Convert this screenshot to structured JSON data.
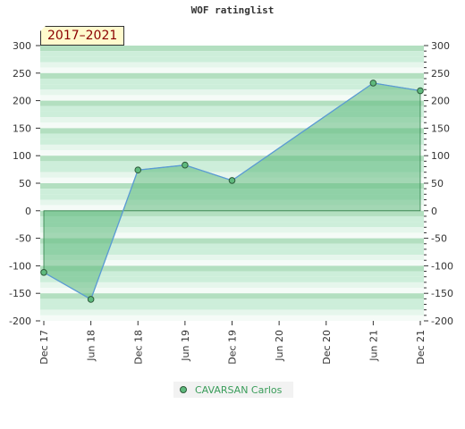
{
  "colors": {
    "band_dark": "#b3dfc0",
    "band_mid": "#cdeeda",
    "band_light": "#e6f6ec",
    "band_white": "#f5fbf7",
    "area_fill": "#5fba7d",
    "line": "#5b9bd5",
    "marker": "#5fba7d",
    "marker_stroke": "#2d5a3a",
    "text": "#333333",
    "legend_text": "#3a9d5a",
    "badge_bg": "#fffacd",
    "badge_text": "#8b0000"
  },
  "chart_data": {
    "type": "area",
    "title": "WOF ratinglist",
    "period_badge": "2017–2021",
    "x_ticks": [
      "Dec 17",
      "Jun 18",
      "Dec 18",
      "Jun 19",
      "Dec 19",
      "Jun 20",
      "Dec 20",
      "Jun 21",
      "Dec 21"
    ],
    "y_ticks": [
      300,
      250,
      200,
      150,
      100,
      50,
      0,
      -50,
      -100,
      -150,
      -200
    ],
    "ylim": [
      -200,
      300
    ],
    "grid": false,
    "legend_position": "bottom",
    "series": [
      {
        "name": "CAVARSAN Carlos",
        "x": [
          "Dec 17",
          "Jun 18",
          "Dec 18",
          "Jun 19",
          "Dec 19",
          "Jun 21",
          "Dec 21"
        ],
        "y": [
          -112,
          -161,
          74,
          83,
          55,
          232,
          218
        ]
      }
    ]
  }
}
